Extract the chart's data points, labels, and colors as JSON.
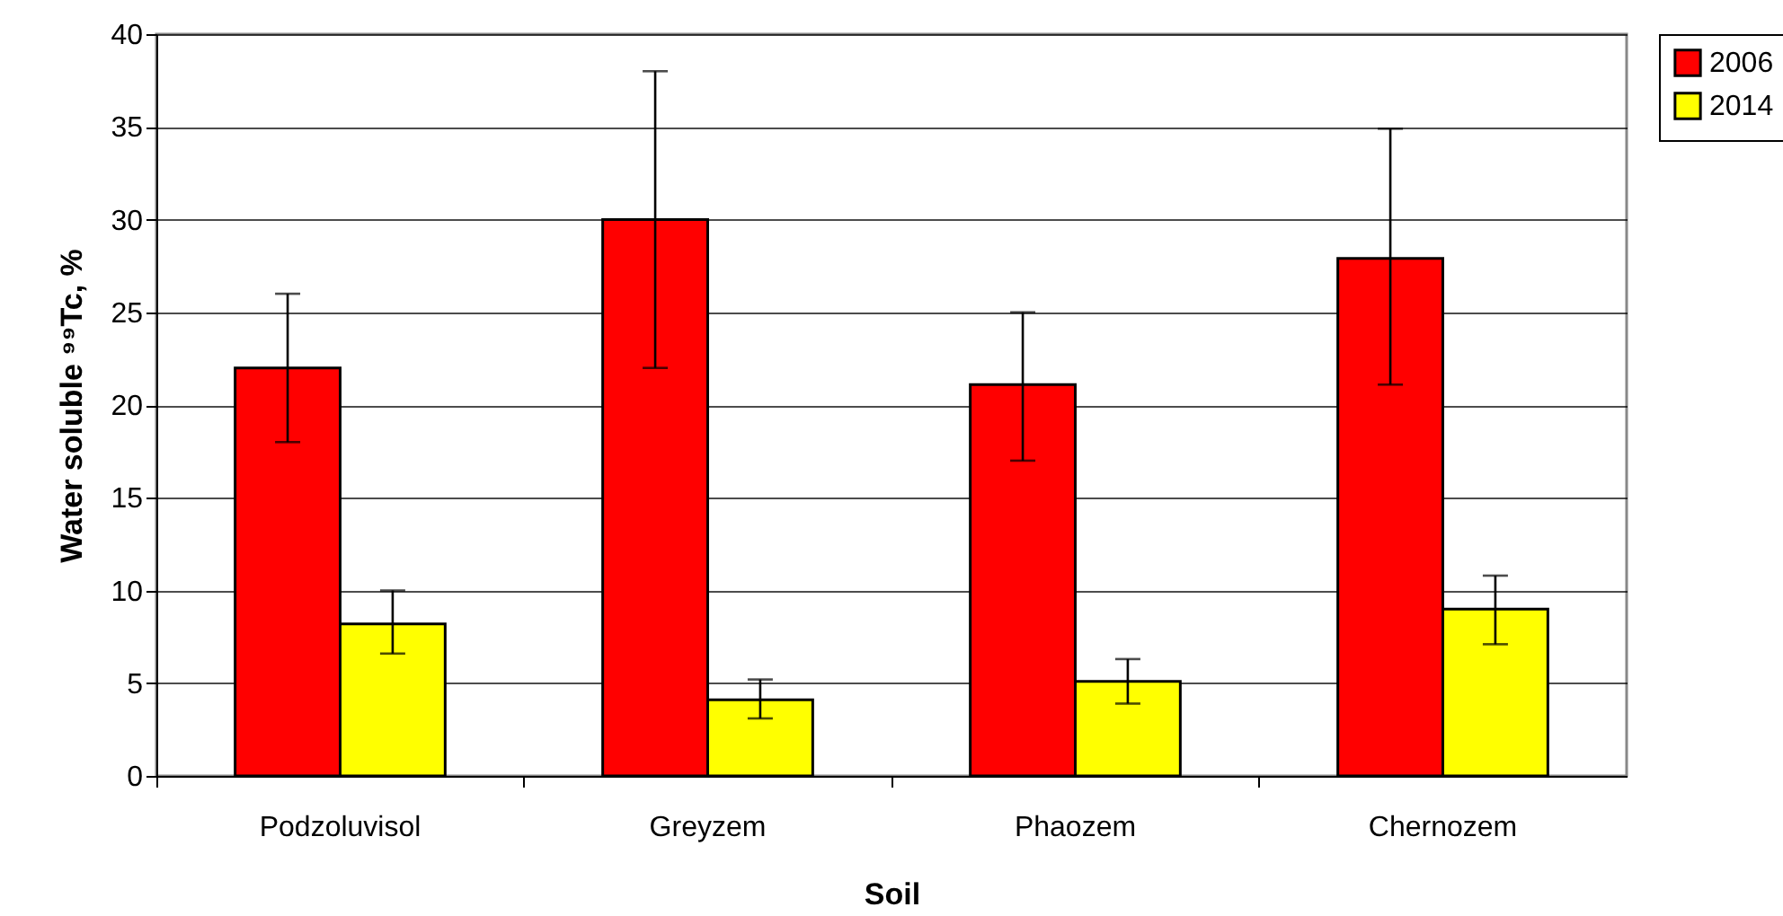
{
  "chart_data": {
    "type": "bar",
    "xlabel": "Soil",
    "ylabel": "Water soluble ⁹⁹Tc, %",
    "categories": [
      "Podzoluvisol",
      "Greyzem",
      "Phaozem",
      "Chernozem"
    ],
    "series": [
      {
        "name": "2006",
        "color": "#ff0000",
        "values": [
          22,
          30,
          21.1,
          27.9
        ],
        "errors": [
          [
            18,
            26
          ],
          [
            22,
            38
          ],
          [
            17,
            25
          ],
          [
            21.1,
            34.9
          ]
        ]
      },
      {
        "name": "2014",
        "color": "#ffff00",
        "values": [
          8.2,
          4.1,
          5.1,
          9.0
        ],
        "errors": [
          [
            6.6,
            10
          ],
          [
            3.1,
            5.2
          ],
          [
            3.9,
            6.3
          ],
          [
            7.1,
            10.8
          ]
        ]
      }
    ],
    "ylim": [
      0,
      40
    ],
    "yticks": [
      0,
      5,
      10,
      15,
      20,
      25,
      30,
      35,
      40
    ],
    "grid": "y",
    "legend": "right"
  }
}
